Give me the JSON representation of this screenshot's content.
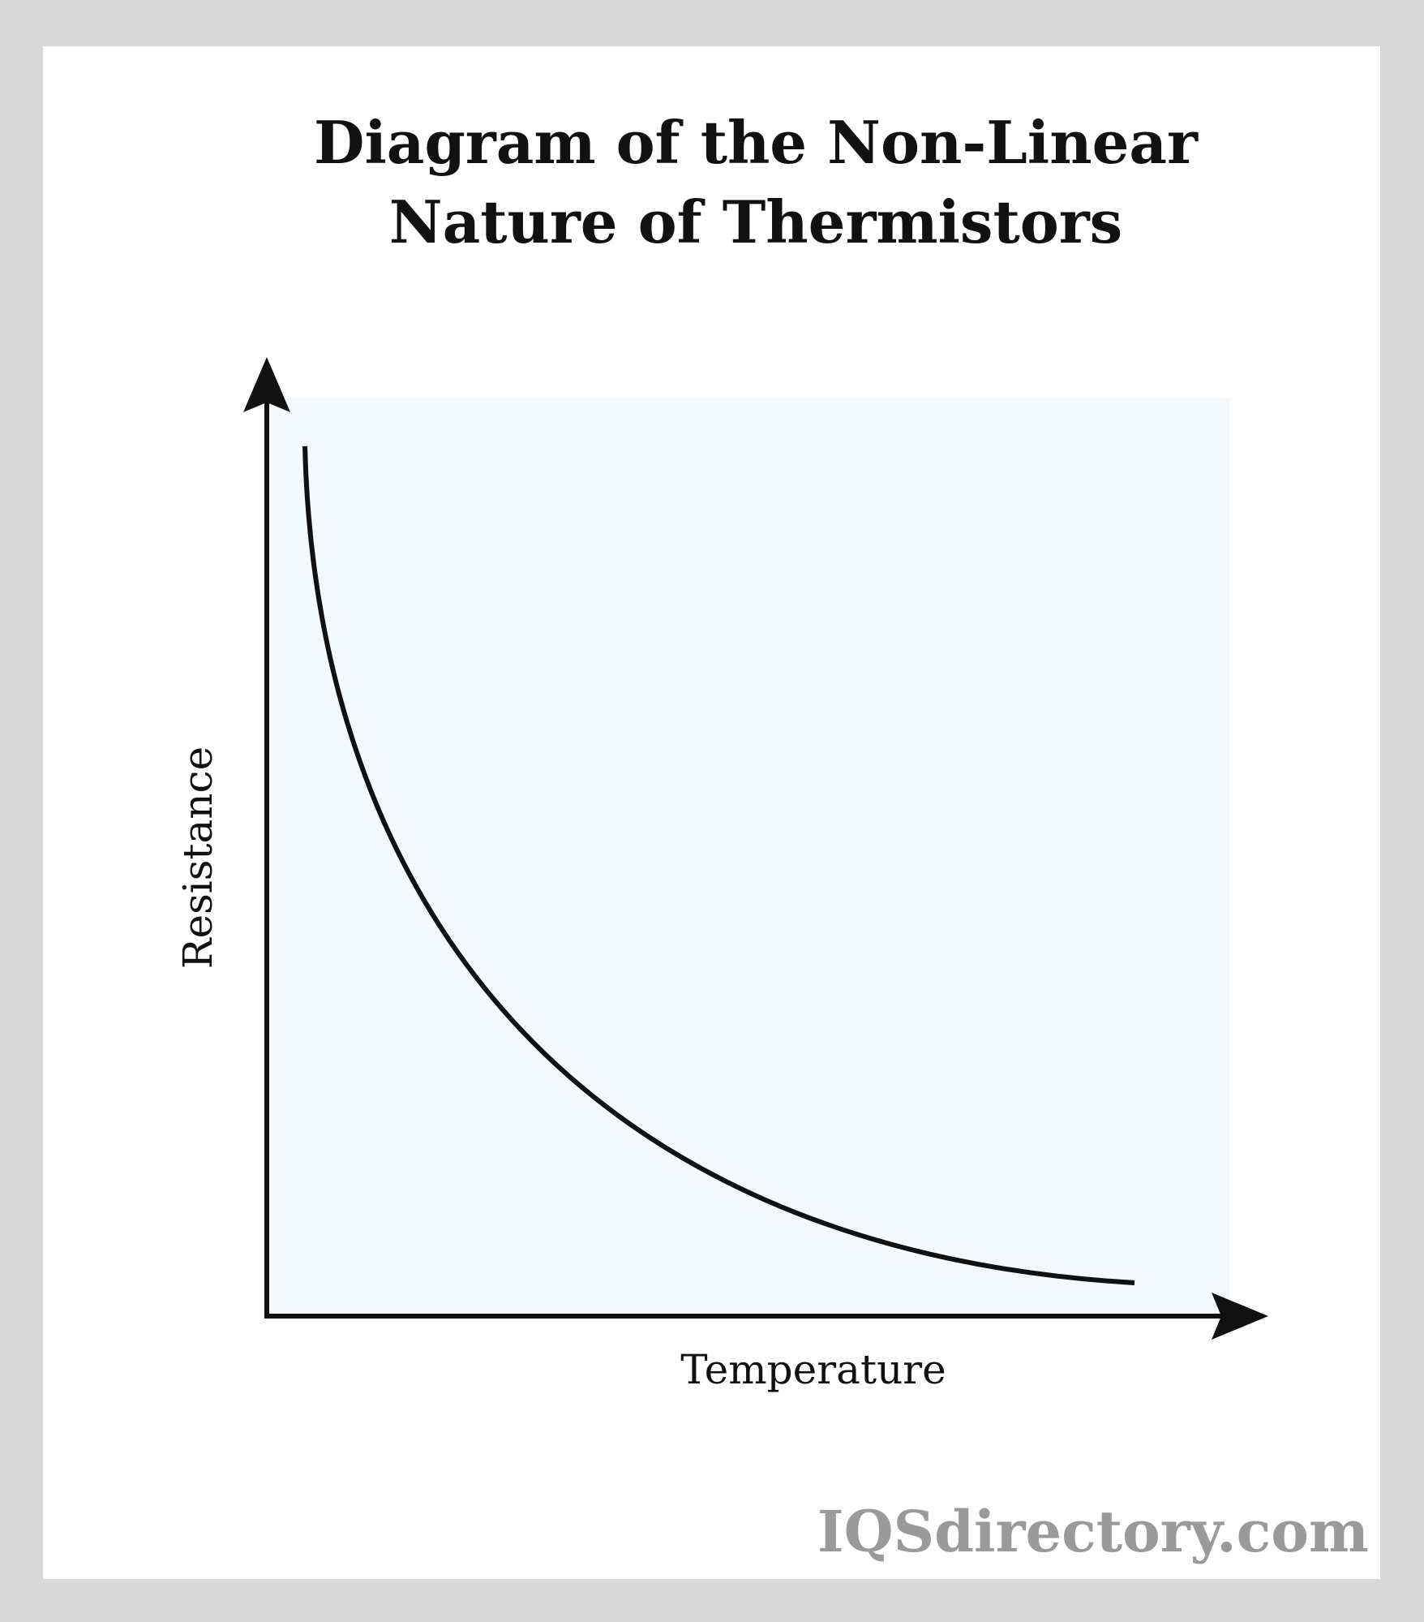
{
  "header": {
    "title_lines": [
      "Diagram of the Non-Linear",
      "Nature of Thermistors"
    ]
  },
  "axes": {
    "y_label": "Resistance",
    "x_label": "Temperature"
  },
  "footer": {
    "watermark": "IQSdirectory.com"
  }
}
